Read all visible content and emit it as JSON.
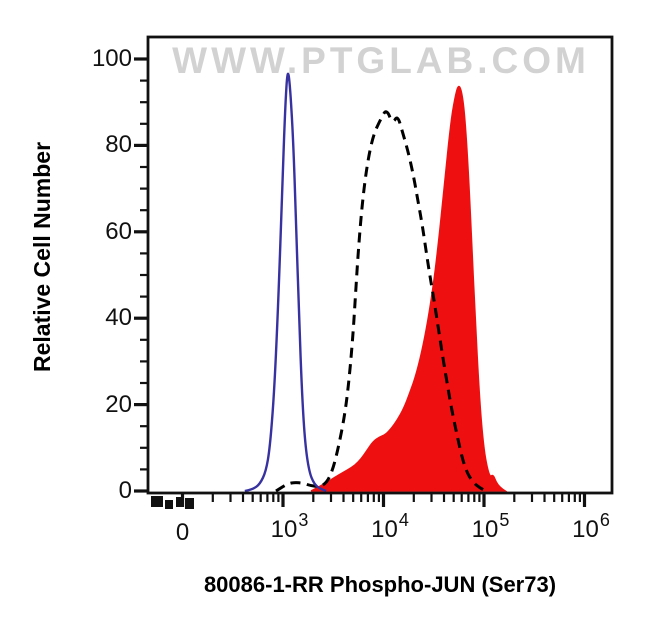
{
  "figure": {
    "watermark": "WWW.PTGLAB.COM",
    "x_axis_title": "80086-1-RR Phospho-JUN (Ser73)",
    "y_axis_title": "Relative Cell Number"
  },
  "colors": {
    "control_curve": "#3732a0",
    "dashed_curve": "#000000",
    "sample_fill": "#ee1010",
    "axis": "#111111",
    "watermark": "#d2d2d2",
    "tick_text": "#111111"
  },
  "chart_data": {
    "type": "area",
    "subtype": "flow-cytometry-overlay-histogram",
    "title": "",
    "xlabel": "80086-1-RR Phospho-JUN (Ser73)",
    "ylabel": "Relative Cell Number",
    "x_scale": "biexponential log10 fluorescence",
    "xlim_log10": [
      1.65,
      6.27
    ],
    "ylim": [
      0,
      105
    ],
    "grid": false,
    "legend": "none",
    "x_ticks": [
      {
        "label": "0",
        "log": 2.0
      },
      {
        "base": "10",
        "exp": "3",
        "log": 3.0
      },
      {
        "base": "10",
        "exp": "4",
        "log": 4.0
      },
      {
        "base": "10",
        "exp": "5",
        "log": 5.0
      },
      {
        "base": "10",
        "exp": "6",
        "log": 6.0
      }
    ],
    "x_minor_ticks": {
      "decades": [
        2,
        3,
        4,
        5
      ],
      "multipliers": [
        2,
        3,
        4,
        5,
        6,
        7,
        8,
        9
      ]
    },
    "x_compressed_zero_cluster": true,
    "y_axis": {
      "major": [
        0,
        20,
        40,
        60,
        80,
        100
      ],
      "minor_step": 5
    },
    "series": [
      {
        "name": "red-filled-histogram",
        "line_style": "filled",
        "color": "#ee1010",
        "peak_log10_x": 4.75,
        "peak_value": 94.5,
        "points": [
          [
            3.28,
            0
          ],
          [
            3.34,
            0.7
          ],
          [
            3.4,
            1.5
          ],
          [
            3.48,
            2.6
          ],
          [
            3.56,
            3.8
          ],
          [
            3.64,
            4.8
          ],
          [
            3.72,
            6
          ],
          [
            3.78,
            7.5
          ],
          [
            3.84,
            9.5
          ],
          [
            3.9,
            11.5
          ],
          [
            3.96,
            12.5
          ],
          [
            4.02,
            13
          ],
          [
            4.08,
            14.5
          ],
          [
            4.14,
            16.5
          ],
          [
            4.2,
            19
          ],
          [
            4.26,
            22.5
          ],
          [
            4.32,
            26.5
          ],
          [
            4.38,
            32
          ],
          [
            4.44,
            39
          ],
          [
            4.5,
            48
          ],
          [
            4.56,
            60
          ],
          [
            4.62,
            74
          ],
          [
            4.67,
            85
          ],
          [
            4.71,
            91
          ],
          [
            4.75,
            94.5
          ],
          [
            4.79,
            91
          ],
          [
            4.82,
            83
          ],
          [
            4.85,
            71
          ],
          [
            4.88,
            56
          ],
          [
            4.91,
            41
          ],
          [
            4.94,
            27
          ],
          [
            4.97,
            16.5
          ],
          [
            5.0,
            9.5
          ],
          [
            5.03,
            5.5
          ],
          [
            5.06,
            3.2
          ],
          [
            5.09,
            3.8
          ],
          [
            5.12,
            2
          ],
          [
            5.16,
            0.8
          ],
          [
            5.21,
            0
          ]
        ]
      },
      {
        "name": "black-dashed-histogram",
        "line_style": "dashed",
        "color": "#000000",
        "peak_log10_x": 4.03,
        "peak_value": 88.5,
        "points": [
          [
            2.93,
            0
          ],
          [
            2.99,
            0.9
          ],
          [
            3.05,
            1.7
          ],
          [
            3.12,
            2
          ],
          [
            3.2,
            1.8
          ],
          [
            3.28,
            1.2
          ],
          [
            3.36,
            1
          ],
          [
            3.43,
            1.8
          ],
          [
            3.49,
            4.5
          ],
          [
            3.55,
            10
          ],
          [
            3.61,
            17
          ],
          [
            3.65,
            24
          ],
          [
            3.69,
            34
          ],
          [
            3.72,
            45
          ],
          [
            3.75,
            56
          ],
          [
            3.79,
            67
          ],
          [
            3.84,
            76
          ],
          [
            3.9,
            82.5
          ],
          [
            3.97,
            86
          ],
          [
            4.03,
            88.5
          ],
          [
            4.09,
            85
          ],
          [
            4.14,
            87
          ],
          [
            4.19,
            83
          ],
          [
            4.24,
            79
          ],
          [
            4.29,
            74
          ],
          [
            4.34,
            67.5
          ],
          [
            4.39,
            61
          ],
          [
            4.44,
            53
          ],
          [
            4.49,
            46
          ],
          [
            4.54,
            38.5
          ],
          [
            4.59,
            31
          ],
          [
            4.64,
            24
          ],
          [
            4.69,
            17.5
          ],
          [
            4.74,
            12
          ],
          [
            4.79,
            7
          ],
          [
            4.84,
            3.8
          ],
          [
            4.9,
            1.8
          ],
          [
            4.96,
            0.7
          ],
          [
            5.02,
            0
          ]
        ]
      },
      {
        "name": "blue-solid-control",
        "line_style": "solid",
        "color": "#3732a0",
        "peak_log10_x": 3.045,
        "peak_value": 98,
        "points": [
          [
            2.62,
            0
          ],
          [
            2.7,
            0.4
          ],
          [
            2.77,
            1.6
          ],
          [
            2.83,
            4.5
          ],
          [
            2.87,
            10
          ],
          [
            2.91,
            22
          ],
          [
            2.95,
            42
          ],
          [
            2.99,
            68
          ],
          [
            3.02,
            88
          ],
          [
            3.045,
            98
          ],
          [
            3.07,
            94
          ],
          [
            3.1,
            82
          ],
          [
            3.13,
            62
          ],
          [
            3.16,
            40
          ],
          [
            3.19,
            22
          ],
          [
            3.22,
            11
          ],
          [
            3.26,
            4.5
          ],
          [
            3.31,
            1.6
          ],
          [
            3.37,
            0.5
          ],
          [
            3.43,
            0
          ]
        ]
      }
    ]
  }
}
